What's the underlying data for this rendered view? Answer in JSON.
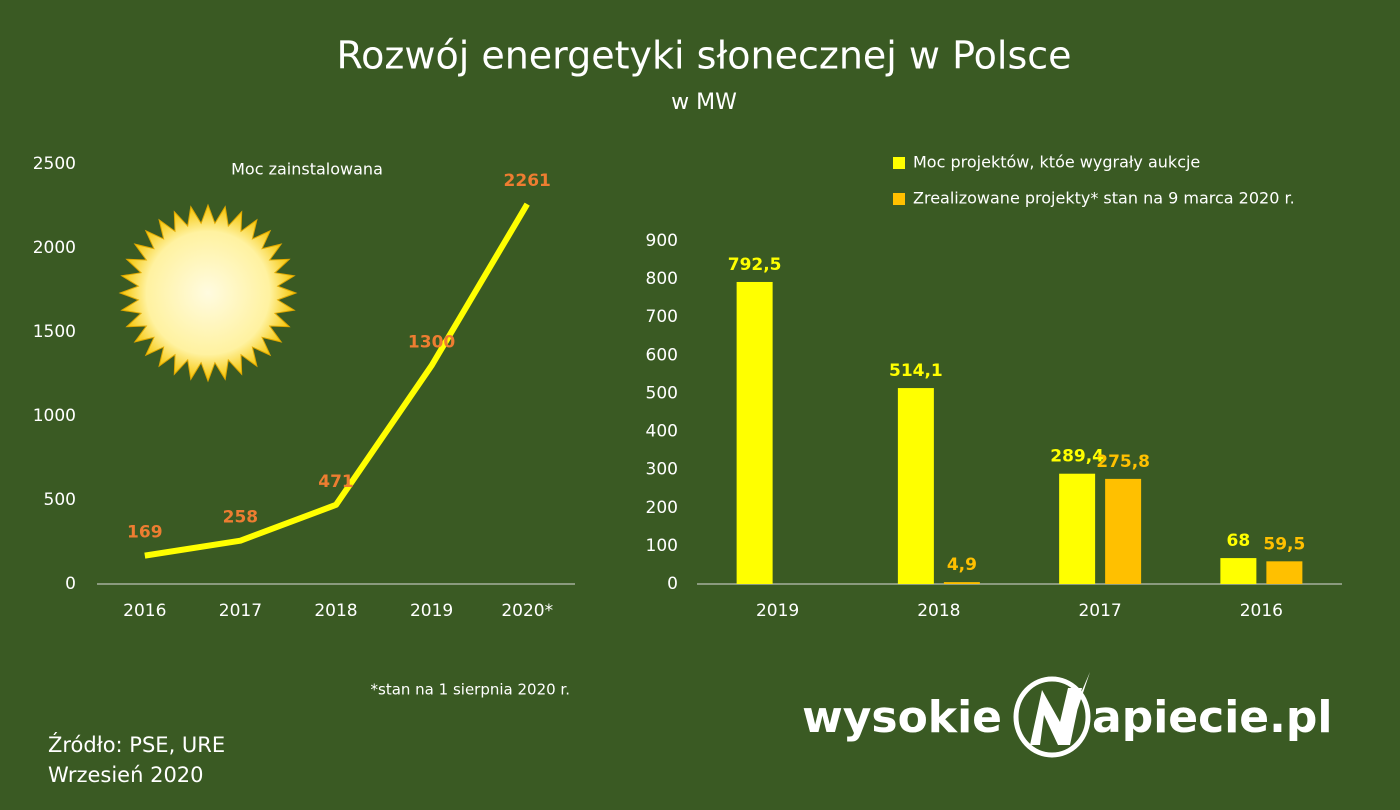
{
  "title": "Rozwój energetyki słonecznej w Polsce",
  "subtitle": "w MW",
  "footnote": "*stan na 1 sierpnia 2020 r.",
  "source": "Źródło: PSE, URE",
  "date": "Wrzesień 2020",
  "logo": {
    "left": "wysokie",
    "right": "apiecie.pl"
  },
  "chart_data": [
    {
      "type": "line",
      "title": "Moc zainstalowana",
      "categories": [
        "2016",
        "2017",
        "2018",
        "2019",
        "2020*"
      ],
      "values": [
        169,
        258,
        471,
        1300,
        2261
      ],
      "color": "#ffff00",
      "label_color": "#ed7d31",
      "ylim": [
        0,
        2500
      ],
      "yticks": [
        0,
        500,
        1000,
        1500,
        2000,
        2500
      ]
    },
    {
      "type": "bar",
      "categories": [
        "2019",
        "2018",
        "2017",
        "2016"
      ],
      "series": [
        {
          "name": "Moc projektów, któe wygrały aukcje",
          "color": "#ffff00",
          "values": [
            792.5,
            514.1,
            289.4,
            68
          ],
          "value_labels": [
            "792,5",
            "514,1",
            "289,4",
            "68"
          ]
        },
        {
          "name": "Zrealizowane projekty* stan na 9 marca 2020 r.",
          "color": "#ffc000",
          "values": [
            null,
            4.9,
            275.8,
            59.5
          ],
          "value_labels": [
            null,
            "4,9",
            "275,8",
            "59,5"
          ]
        }
      ],
      "ylim": [
        0,
        900
      ],
      "yticks": [
        0,
        100,
        200,
        300,
        400,
        500,
        600,
        700,
        800,
        900
      ]
    }
  ]
}
